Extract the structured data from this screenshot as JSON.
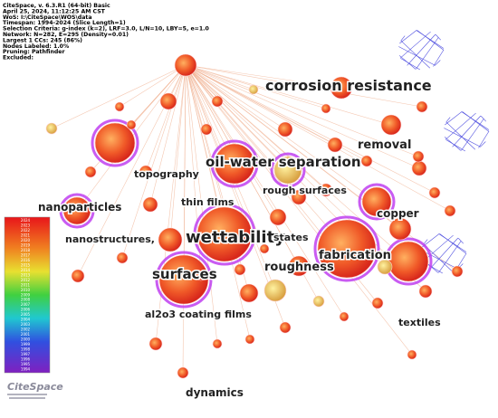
{
  "header": {
    "lines": [
      "CiteSpace, v. 6.3.R1 (64-bit) Basic",
      "April 25, 2024, 11:12:25 AM CST",
      "WoS: I:\\CiteSpace\\WOS\\data",
      "Timespan: 1994-2024 (Slice Length=1)",
      "Selection Criteria: g-index (k=2), LRF=3.0, L/N=10, LBY=5, e=1.0",
      "Network: N=282, E=295 (Density=0.01)",
      "Largest 1 CCs: 245 (86%)",
      "Nodes Labeled: 1.0%",
      "Pruning: Pathfinder",
      "Excluded:"
    ]
  },
  "legend": {
    "years": [
      "2024",
      "2023",
      "2022",
      "2021",
      "2020",
      "2019",
      "2018",
      "2017",
      "2016",
      "2015",
      "2014",
      "2013",
      "2012",
      "2011",
      "2010",
      "2009",
      "2008",
      "2007",
      "2006",
      "2005",
      "2004",
      "2003",
      "2002",
      "2001",
      "2000",
      "1999",
      "1998",
      "1997",
      "1996",
      "1995",
      "1994"
    ]
  },
  "logo": "CiteSpace",
  "nodes": [
    {
      "label": "corrosion resistance"
    },
    {
      "label": "removal"
    },
    {
      "label": "oil-water separation"
    },
    {
      "label": "topography"
    },
    {
      "label": "rough surfaces"
    },
    {
      "label": "thin films"
    },
    {
      "label": "nanoparticles"
    },
    {
      "label": "copper"
    },
    {
      "label": "wettability"
    },
    {
      "label": "states"
    },
    {
      "label": "nanostructures,"
    },
    {
      "label": "fabrication"
    },
    {
      "label": "roughness"
    },
    {
      "label": "surfaces"
    },
    {
      "label": "al2o3 coating films"
    },
    {
      "label": "textiles"
    },
    {
      "label": "dynamics"
    }
  ]
}
